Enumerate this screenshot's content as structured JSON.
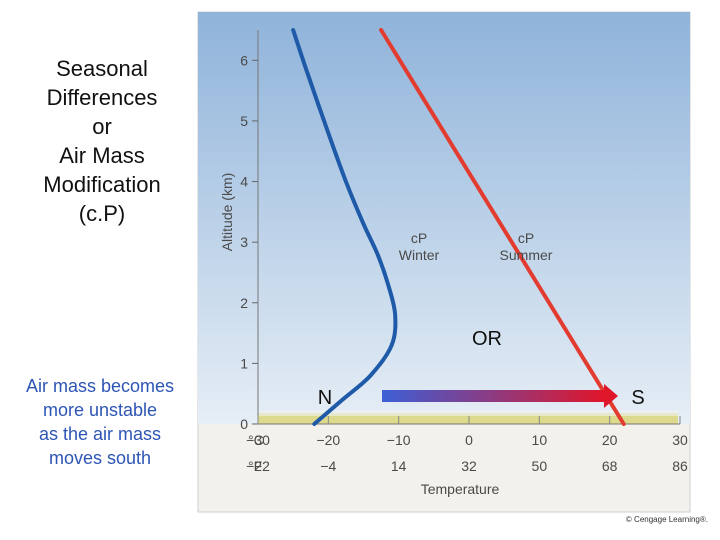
{
  "slide": {
    "title": "Seasonal\nDifferences\nor\nAir Mass\nModification\n(c.P)",
    "note": "Air mass becomes\nmore unstable\nas the air mass\nmoves south",
    "copyright": "© Cengage Learning®."
  },
  "colors": {
    "sky_top": "#8fb3da",
    "sky_bottom": "#e6eef6",
    "winter_line": "#1f5aa8",
    "summer_line": "#e23b2f",
    "arrow_start": "#3c5fd6",
    "arrow_end": "#e0162b",
    "ground": "#d9d36a"
  },
  "chart_data": {
    "type": "line",
    "title": "",
    "xlabel": "Temperature",
    "ylabel": "Altitude (km)",
    "xlim": [
      -30,
      30
    ],
    "ylim": [
      0,
      6.5
    ],
    "y_ticks": [
      "0",
      "1",
      "2",
      "3",
      "4",
      "5",
      "6"
    ],
    "celsius_unit": "°C",
    "fahrenheit_unit": "°F",
    "x_ticks_c": [
      "−30",
      "−20",
      "−10",
      "0",
      "10",
      "20",
      "30"
    ],
    "x_ticks_c_values": [
      -30,
      -20,
      -10,
      0,
      10,
      20,
      30
    ],
    "x_ticks_f": [
      "−22",
      "−4",
      "14",
      "32",
      "50",
      "68",
      "86"
    ],
    "series": [
      {
        "name": "cP Winter",
        "label_line1": "cP",
        "label_line2": "Winter",
        "points": [
          [
            -22,
            0
          ],
          [
            -18,
            0.4
          ],
          [
            -14,
            0.8
          ],
          [
            -11,
            1.3
          ],
          [
            -10.5,
            1.8
          ],
          [
            -11.5,
            2.3
          ],
          [
            -13,
            2.8
          ],
          [
            -15,
            3.3
          ],
          [
            -17.5,
            4
          ],
          [
            -20,
            4.8
          ],
          [
            -23,
            5.8
          ],
          [
            -25,
            6.5
          ]
        ]
      },
      {
        "name": "cP Summer",
        "label_line1": "cP",
        "label_line2": "Summer",
        "points": [
          [
            22,
            0
          ],
          [
            -12.5,
            6.5
          ]
        ]
      }
    ],
    "annotations": {
      "or_label": "OR",
      "north_label": "N",
      "south_label": "S"
    }
  }
}
